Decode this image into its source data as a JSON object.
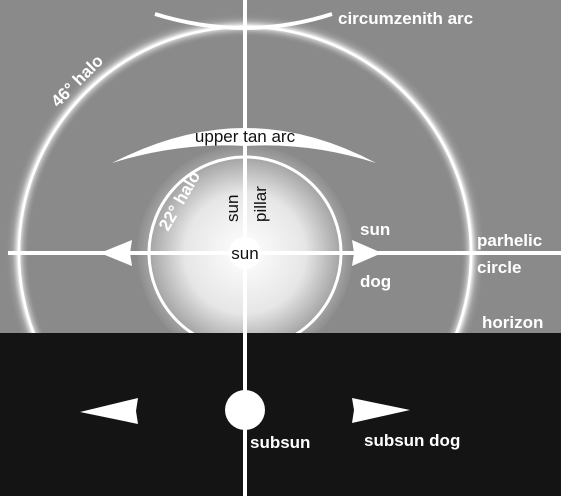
{
  "labels": {
    "circumzenith_arc": "circumzenith arc",
    "halo_46": "46° halo",
    "upper_tan_arc": "upper tan arc",
    "halo_22": "22° halo",
    "sun_pillar": [
      "sun",
      "pillar"
    ],
    "sun": "sun",
    "sun_dog": [
      "sun",
      "dog"
    ],
    "parhelic_circle": [
      "parhelic",
      "circle"
    ],
    "horizon": "horizon",
    "subsun": "subsun",
    "subsun_dog": "subsun dog"
  }
}
